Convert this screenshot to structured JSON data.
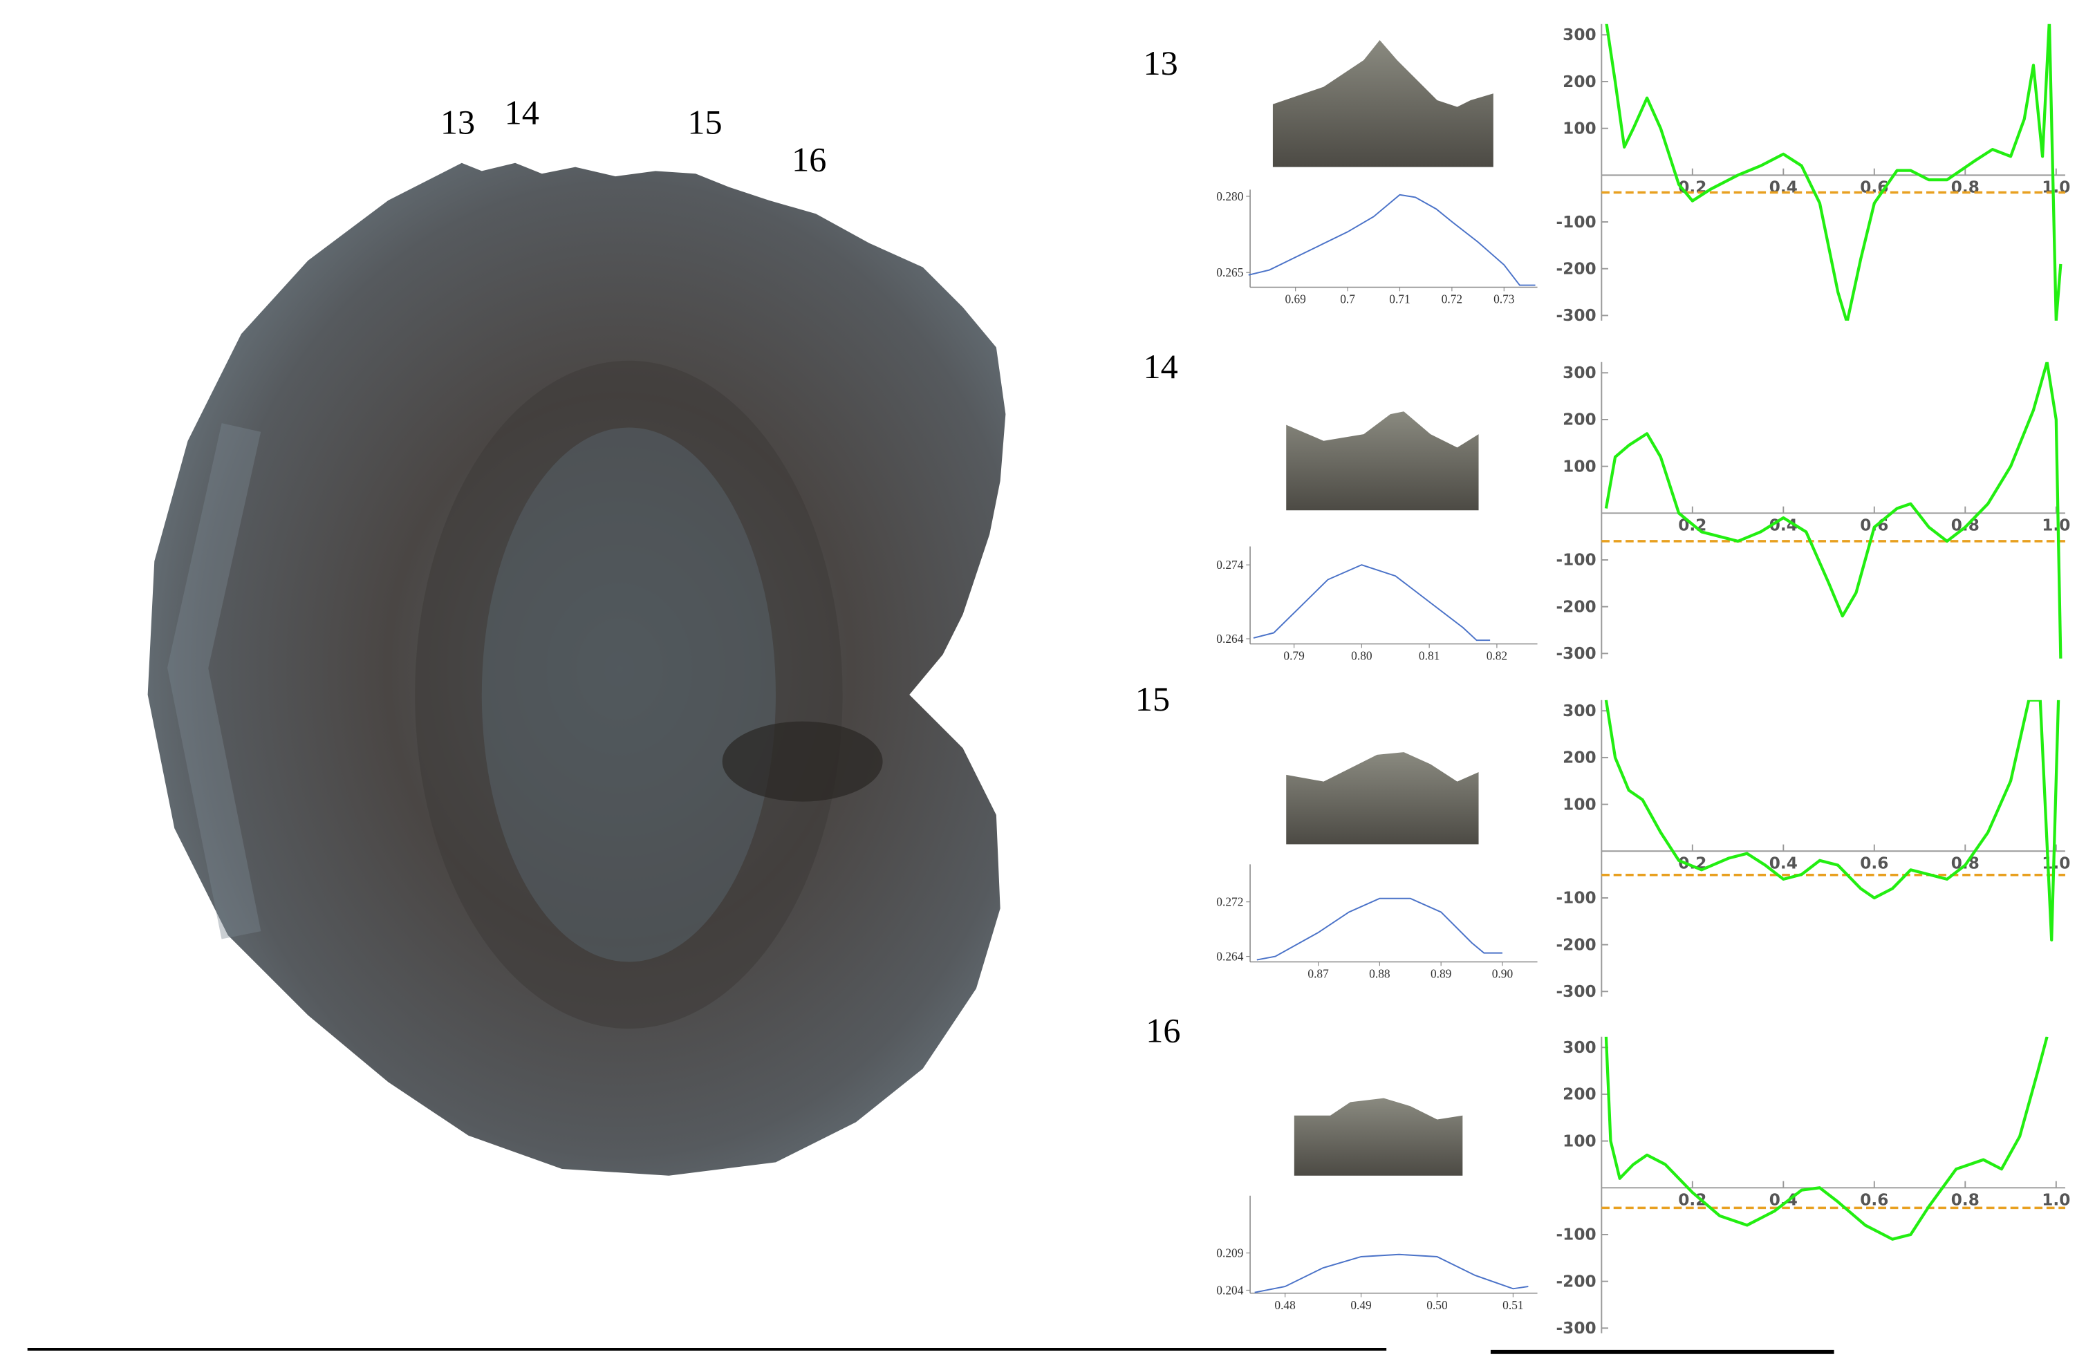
{
  "specimen_labels": [
    "13",
    "14",
    "15",
    "16"
  ],
  "panels": [
    {
      "label": "13",
      "profile": {
        "type": "line",
        "xlim": [
          0.6813,
          0.7364
        ],
        "ylim": [
          0.2621,
          0.2813
        ],
        "xticks": [
          0.69,
          0.7,
          0.71,
          0.72,
          0.73
        ],
        "yticks": [
          {
            "value": 0.28,
            "label": "0.280"
          },
          0.265
        ],
        "x": [
          0.681,
          0.685,
          0.69,
          0.695,
          0.7,
          0.705,
          0.71,
          0.713,
          0.717,
          0.72,
          0.725,
          0.73,
          0.733,
          0.736
        ],
        "y": [
          0.2645,
          0.2655,
          0.268,
          0.2705,
          0.273,
          0.276,
          0.2803,
          0.2798,
          0.2775,
          0.275,
          0.271,
          0.2665,
          0.2625,
          0.2625
        ],
        "color": "#4a72c8"
      },
      "curvature": {
        "type": "line",
        "xlim": [
          0,
          1.02
        ],
        "ylim": [
          -311,
          323
        ],
        "xticks": [
          0.2,
          0.4,
          0.6,
          0.8,
          {
            "value": 1,
            "label": "1.0"
          }
        ],
        "yticks": [
          300,
          200,
          100,
          -100,
          -200,
          -300
        ],
        "x": [
          0.01,
          0.03,
          0.05,
          0.07,
          0.1,
          0.13,
          0.17,
          0.2,
          0.24,
          0.3,
          0.35,
          0.4,
          0.44,
          0.48,
          0.52,
          0.54,
          0.57,
          0.6,
          0.65,
          0.68,
          0.72,
          0.76,
          0.82,
          0.86,
          0.9,
          0.93,
          0.95,
          0.97,
          0.985,
          1.0,
          1.01
        ],
        "y": [
          330,
          200,
          60,
          100,
          165,
          100,
          -20,
          -55,
          -30,
          0,
          20,
          45,
          20,
          -60,
          -250,
          -315,
          -180,
          -60,
          10,
          10,
          -10,
          -10,
          30,
          55,
          40,
          120,
          235,
          40,
          330,
          -311,
          -190
        ],
        "threshold": -37,
        "color": "#22ee11",
        "threshold_color": "#e8a020"
      }
    },
    {
      "label": "14",
      "profile": {
        "type": "line",
        "xlim": [
          0.7835,
          0.826
        ],
        "ylim": [
          0.2633,
          0.2765
        ],
        "xticks": [
          0.79,
          {
            "value": 0.8,
            "label": "0.80"
          },
          0.81,
          0.82
        ],
        "yticks": [
          0.274,
          0.264
        ],
        "x": [
          0.784,
          0.787,
          0.79,
          0.795,
          0.8,
          0.805,
          0.81,
          0.815,
          0.817,
          0.819
        ],
        "y": [
          0.2641,
          0.2648,
          0.2675,
          0.272,
          0.274,
          0.2725,
          0.269,
          0.2655,
          0.2638,
          0.2638
        ],
        "color": "#4a72c8"
      },
      "curvature": {
        "type": "line",
        "xlim": [
          0,
          1.02
        ],
        "ylim": [
          -311,
          323
        ],
        "xticks": [
          0.2,
          0.4,
          0.6,
          0.8,
          {
            "value": 1,
            "label": "1.0"
          }
        ],
        "yticks": [
          300,
          200,
          100,
          -100,
          -200,
          -300
        ],
        "x": [
          0.01,
          0.03,
          0.06,
          0.1,
          0.13,
          0.17,
          0.22,
          0.3,
          0.35,
          0.4,
          0.45,
          0.5,
          0.53,
          0.56,
          0.6,
          0.65,
          0.68,
          0.72,
          0.76,
          0.8,
          0.85,
          0.9,
          0.95,
          0.98,
          1.0,
          1.01
        ],
        "y": [
          10,
          120,
          145,
          170,
          120,
          0,
          -40,
          -60,
          -40,
          -10,
          -40,
          -150,
          -220,
          -170,
          -30,
          10,
          20,
          -30,
          -60,
          -30,
          20,
          100,
          220,
          323,
          200,
          -311
        ],
        "threshold": -60,
        "color": "#22ee11",
        "threshold_color": "#e8a020"
      }
    },
    {
      "label": "15",
      "profile": {
        "type": "line",
        "xlim": [
          0.8589,
          0.9057
        ],
        "ylim": [
          0.2632,
          0.2775
        ],
        "xticks": [
          0.87,
          0.88,
          0.89,
          {
            "value": 0.9,
            "label": "0.90"
          }
        ],
        "yticks": [
          0.272,
          0.264
        ],
        "x": [
          0.86,
          0.863,
          0.87,
          0.875,
          0.88,
          0.885,
          0.89,
          0.895,
          0.897,
          0.9
        ],
        "y": [
          0.2635,
          0.264,
          0.2675,
          0.2705,
          0.2725,
          0.2725,
          0.2705,
          0.266,
          0.2645,
          0.2645
        ],
        "color": "#4a72c8"
      },
      "curvature": {
        "type": "line",
        "xlim": [
          0,
          1.02
        ],
        "ylim": [
          -311,
          323
        ],
        "xticks": [
          0.2,
          0.4,
          0.6,
          0.8,
          {
            "value": 1,
            "label": "1.0"
          }
        ],
        "yticks": [
          300,
          200,
          100,
          -100,
          -200,
          -300
        ],
        "x": [
          0.01,
          0.03,
          0.06,
          0.09,
          0.13,
          0.17,
          0.22,
          0.28,
          0.32,
          0.36,
          0.4,
          0.44,
          0.48,
          0.52,
          0.57,
          0.6,
          0.64,
          0.68,
          0.72,
          0.76,
          0.8,
          0.85,
          0.9,
          0.94,
          0.965,
          0.99,
          1.005
        ],
        "y": [
          323,
          200,
          130,
          110,
          40,
          -20,
          -40,
          -15,
          -5,
          -30,
          -60,
          -50,
          -20,
          -30,
          -80,
          -100,
          -80,
          -40,
          -50,
          -60,
          -30,
          40,
          150,
          323,
          323,
          -190,
          323
        ],
        "threshold": -51,
        "color": "#22ee11",
        "threshold_color": "#e8a020"
      }
    },
    {
      "label": "16",
      "profile": {
        "type": "line",
        "xlim": [
          0.4754,
          0.5132
        ],
        "ylim": [
          0.2036,
          0.2167
        ],
        "xticks": [
          0.48,
          0.49,
          {
            "value": 0.5,
            "label": "0.50"
          },
          0.51
        ],
        "yticks": [
          0.209,
          0.204
        ],
        "x": [
          0.476,
          0.48,
          0.485,
          0.49,
          0.495,
          0.5,
          0.505,
          0.51,
          0.512
        ],
        "y": [
          0.2037,
          0.2045,
          0.207,
          0.2085,
          0.2088,
          0.2085,
          0.206,
          0.2042,
          0.2045
        ],
        "color": "#4a72c8"
      },
      "curvature": {
        "type": "line",
        "xlim": [
          0,
          1.02
        ],
        "ylim": [
          -311,
          323
        ],
        "xticks": [
          0.2,
          0.4,
          0.6,
          0.8,
          {
            "value": 1,
            "label": "1.0"
          }
        ],
        "yticks": [
          300,
          200,
          100,
          -100,
          -200,
          -300
        ],
        "x": [
          0.01,
          0.02,
          0.04,
          0.07,
          0.1,
          0.14,
          0.2,
          0.26,
          0.32,
          0.38,
          0.44,
          0.48,
          0.52,
          0.58,
          0.64,
          0.68,
          0.72,
          0.78,
          0.84,
          0.88,
          0.92,
          0.96,
          0.98
        ],
        "y": [
          323,
          100,
          20,
          50,
          70,
          50,
          -10,
          -60,
          -80,
          -50,
          -5,
          0,
          -30,
          -80,
          -110,
          -100,
          -40,
          40,
          60,
          40,
          110,
          250,
          323
        ],
        "threshold": -43,
        "color": "#22ee11",
        "threshold_color": "#e8a020"
      }
    }
  ]
}
